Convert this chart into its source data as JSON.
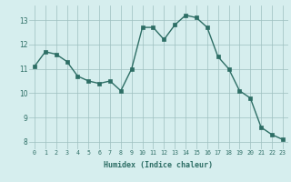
{
  "x": [
    0,
    1,
    2,
    3,
    4,
    5,
    6,
    7,
    8,
    9,
    10,
    11,
    12,
    13,
    14,
    15,
    16,
    17,
    18,
    19,
    20,
    21,
    22,
    23
  ],
  "y": [
    11.1,
    11.7,
    11.6,
    11.3,
    10.7,
    10.5,
    10.4,
    10.5,
    10.1,
    11.0,
    12.7,
    12.7,
    12.2,
    12.8,
    13.2,
    13.1,
    12.7,
    11.5,
    11.0,
    10.1,
    9.8,
    8.6,
    8.3,
    8.1
  ],
  "line_color": "#2d6e65",
  "marker": "s",
  "markersize": 2.2,
  "linewidth": 1.0,
  "xlabel": "Humidex (Indice chaleur)",
  "ylim": [
    7.7,
    13.6
  ],
  "xlim": [
    -0.5,
    23.5
  ],
  "yticks": [
    8,
    9,
    10,
    11,
    12,
    13
  ],
  "xticks": [
    0,
    1,
    2,
    3,
    4,
    5,
    6,
    7,
    8,
    9,
    10,
    11,
    12,
    13,
    14,
    15,
    16,
    17,
    18,
    19,
    20,
    21,
    22,
    23
  ],
  "bg_color": "#d6eeee",
  "grid_color": "#9dbfbf",
  "tick_color": "#2d6e65",
  "xlabel_fontsize": 6.0,
  "ytick_fontsize": 5.5,
  "xtick_fontsize": 4.8
}
